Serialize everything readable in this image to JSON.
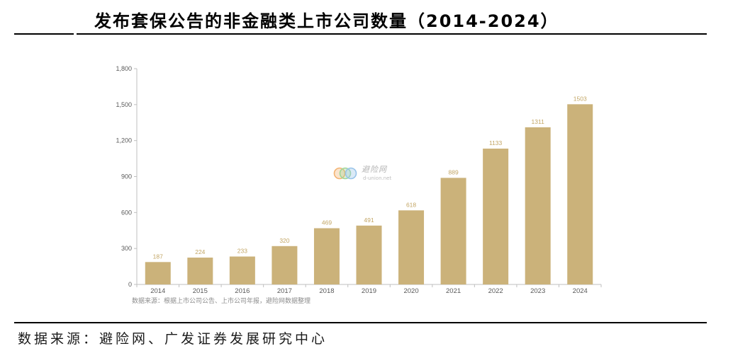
{
  "title": "发布套保公告的非金融类上市公司数量（2014-2024）",
  "footer_source": "数据来源：避险网、广发证券发展研究中心",
  "watermark": {
    "name": "避险网",
    "domain": "d-union.net",
    "logo_colors": [
      "#f2a65a",
      "#8fcf85",
      "#86b9e6"
    ]
  },
  "chart_data": {
    "type": "bar",
    "categories": [
      "2014",
      "2015",
      "2016",
      "2017",
      "2018",
      "2019",
      "2020",
      "2021",
      "2022",
      "2023",
      "2024"
    ],
    "values": [
      187,
      224,
      233,
      320,
      469,
      491,
      618,
      889,
      1133,
      1311,
      1503
    ],
    "ylim": [
      0,
      1800
    ],
    "yticks": [
      0,
      300,
      600,
      900,
      1200,
      1500,
      1800
    ],
    "ytick_labels": [
      "0",
      "300",
      "600",
      "900",
      "1,200",
      "1,500",
      "1,800"
    ],
    "data_labels_shown": true,
    "grid": false,
    "source_note": "数据来源：根据上市公司公告、上市公司年报，避险网数据整理",
    "bar_color": "#cbb27a",
    "data_label_color": "#c2a564",
    "axis_color": "#bfbfbf",
    "tick_label_color": "#595959"
  }
}
